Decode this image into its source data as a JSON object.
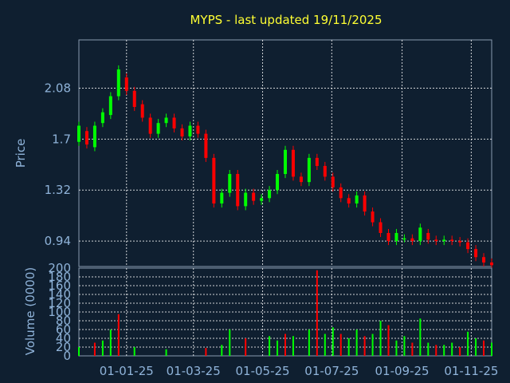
{
  "chart_data": [
    {
      "type": "candlestick",
      "title": "MYPS - last updated 19/11/2025",
      "ylabel": "Price",
      "yticks": [
        "0.94",
        "1.32",
        "1.7",
        "2.08"
      ],
      "ylim": [
        0.75,
        2.44
      ],
      "xlim": [
        "2024-11-20",
        "2025-11-19"
      ],
      "xticks": [
        "01-01-25",
        "01-03-25",
        "01-05-25",
        "01-07-25",
        "01-09-25",
        "01-11-25"
      ],
      "grid": true,
      "colors": {
        "up": "#00ff00",
        "down": "#ff0000",
        "grid": "#ffffff",
        "text": "#8fb3d9",
        "title": "#ffff33",
        "background": "#0f1f30"
      },
      "series": [
        {
          "values": [
            [
              "2024-11-20",
              1.68,
              1.8
            ],
            [
              "2024-11-27",
              1.76,
              1.66
            ],
            [
              "2024-12-04",
              1.64,
              1.8
            ],
            [
              "2024-12-11",
              1.82,
              1.9
            ],
            [
              "2024-12-18",
              1.88,
              2.02
            ],
            [
              "2024-12-25",
              2.02,
              2.22
            ],
            [
              "2025-01-01",
              2.16,
              2.06
            ],
            [
              "2025-01-08",
              2.06,
              1.94
            ],
            [
              "2025-01-15",
              1.96,
              1.86
            ],
            [
              "2025-01-22",
              1.86,
              1.74
            ],
            [
              "2025-01-29",
              1.74,
              1.82
            ],
            [
              "2025-02-05",
              1.82,
              1.86
            ],
            [
              "2025-02-12",
              1.86,
              1.78
            ],
            [
              "2025-02-19",
              1.78,
              1.72
            ],
            [
              "2025-02-26",
              1.72,
              1.8
            ],
            [
              "2025-03-05",
              1.8,
              1.74
            ],
            [
              "2025-03-12",
              1.74,
              1.56
            ],
            [
              "2025-03-19",
              1.56,
              1.22
            ],
            [
              "2025-03-26",
              1.22,
              1.3
            ],
            [
              "2025-04-02",
              1.3,
              1.44
            ],
            [
              "2025-04-09",
              1.44,
              1.2
            ],
            [
              "2025-04-16",
              1.2,
              1.3
            ],
            [
              "2025-04-23",
              1.3,
              1.24
            ],
            [
              "2025-04-30",
              1.24,
              1.26
            ],
            [
              "2025-05-07",
              1.26,
              1.32
            ],
            [
              "2025-05-14",
              1.32,
              1.44
            ],
            [
              "2025-05-21",
              1.44,
              1.62
            ],
            [
              "2025-05-28",
              1.62,
              1.42
            ],
            [
              "2025-06-04",
              1.42,
              1.38
            ],
            [
              "2025-06-11",
              1.38,
              1.56
            ],
            [
              "2025-06-18",
              1.56,
              1.5
            ],
            [
              "2025-06-25",
              1.5,
              1.42
            ],
            [
              "2025-07-02",
              1.42,
              1.34
            ],
            [
              "2025-07-09",
              1.34,
              1.26
            ],
            [
              "2025-07-16",
              1.26,
              1.22
            ],
            [
              "2025-07-23",
              1.22,
              1.28
            ],
            [
              "2025-07-30",
              1.28,
              1.16
            ],
            [
              "2025-08-06",
              1.16,
              1.08
            ],
            [
              "2025-08-13",
              1.08,
              1.0
            ],
            [
              "2025-08-20",
              1.0,
              0.94
            ],
            [
              "2025-08-27",
              0.94,
              1.0
            ],
            [
              "2025-09-03",
              0.96,
              0.96
            ],
            [
              "2025-09-10",
              0.96,
              0.94
            ],
            [
              "2025-09-17",
              0.94,
              1.04
            ],
            [
              "2025-09-24",
              1.0,
              0.95
            ],
            [
              "2025-10-01",
              0.95,
              0.94
            ],
            [
              "2025-10-08",
              0.94,
              0.95
            ],
            [
              "2025-10-15",
              0.95,
              0.94
            ],
            [
              "2025-10-22",
              0.94,
              0.93
            ],
            [
              "2025-10-29",
              0.93,
              0.88
            ],
            [
              "2025-11-05",
              0.88,
              0.82
            ],
            [
              "2025-11-12",
              0.82,
              0.78
            ],
            [
              "2025-11-19",
              0.78,
              0.76
            ]
          ]
        }
      ]
    },
    {
      "type": "bar",
      "ylabel": "Volume (0000)",
      "yticks": [
        "0",
        "20",
        "40",
        "60",
        "80",
        "100",
        "120",
        "140",
        "160",
        "180",
        "200"
      ],
      "ylim": [
        0,
        200
      ],
      "grid": true,
      "series": [
        {
          "values": [
            [
              "2024-11-20",
              20
            ],
            [
              "2024-12-04",
              30
            ],
            [
              "2024-12-11",
              35
            ],
            [
              "2024-12-18",
              60
            ],
            [
              "2024-12-25",
              95
            ],
            [
              "2025-01-08",
              20
            ],
            [
              "2025-02-05",
              15
            ],
            [
              "2025-03-12",
              18
            ],
            [
              "2025-03-26",
              25
            ],
            [
              "2025-04-02",
              60
            ],
            [
              "2025-04-16",
              40
            ],
            [
              "2025-05-07",
              45
            ],
            [
              "2025-05-14",
              35
            ],
            [
              "2025-05-21",
              50
            ],
            [
              "2025-05-28",
              45
            ],
            [
              "2025-06-11",
              60
            ],
            [
              "2025-06-18",
              195
            ],
            [
              "2025-06-25",
              50
            ],
            [
              "2025-07-02",
              65
            ],
            [
              "2025-07-09",
              50
            ],
            [
              "2025-07-16",
              40
            ],
            [
              "2025-07-23",
              60
            ],
            [
              "2025-07-30",
              45
            ],
            [
              "2025-08-06",
              50
            ],
            [
              "2025-08-13",
              80
            ],
            [
              "2025-08-20",
              70
            ],
            [
              "2025-08-27",
              35
            ],
            [
              "2025-09-03",
              45
            ],
            [
              "2025-09-10",
              30
            ],
            [
              "2025-09-17",
              85
            ],
            [
              "2025-09-24",
              30
            ],
            [
              "2025-10-01",
              25
            ],
            [
              "2025-10-08",
              25
            ],
            [
              "2025-10-15",
              30
            ],
            [
              "2025-10-22",
              20
            ],
            [
              "2025-10-29",
              55
            ],
            [
              "2025-11-05",
              40
            ],
            [
              "2025-11-12",
              35
            ],
            [
              "2025-11-19",
              30
            ]
          ]
        }
      ]
    }
  ]
}
